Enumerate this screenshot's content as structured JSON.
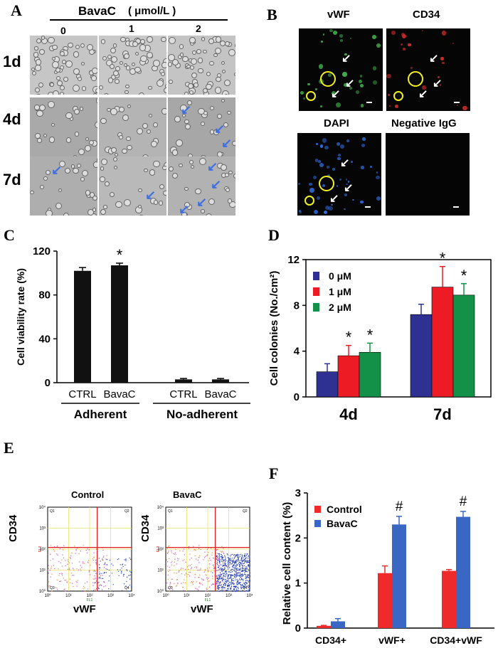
{
  "panels": {
    "A": "A",
    "B": "B",
    "C": "C",
    "D": "D",
    "E": "E",
    "F": "F"
  },
  "panel_a": {
    "treatment_label": "BavaC",
    "unit_label": "( μmol/L )",
    "columns": [
      "0",
      "1",
      "2"
    ],
    "rows": [
      "1d",
      "4d",
      "7d"
    ]
  },
  "panel_b": {
    "labels": [
      "vWF",
      "CD34",
      "DAPI",
      "Negative IgG"
    ]
  },
  "panel_e": {
    "titles": [
      "Control",
      "BavaC"
    ],
    "ylabel": "CD34",
    "xlabel": "vWF",
    "tick_labels": [
      "10⁰",
      "10¹",
      "10²",
      "10³",
      "10⁴"
    ],
    "quadrant_labels": [
      "Q1",
      "Q2",
      "Q3",
      "Q4"
    ],
    "axis_channel_labels": [
      "FL1",
      "FL3"
    ]
  },
  "colors": {
    "black_bar": "#111111",
    "blue": "#2e3192",
    "red": "#ed1c24",
    "green": "#139148",
    "f_blue": "#3a66c4",
    "f_red": "#ee2a2a",
    "arrow_blue": "#3f6fe0",
    "vwf_green": "#3fae49",
    "cd34_red": "#d42b2b",
    "dapi_blue": "#2f6de0",
    "circle_yellow": "#f2f21a"
  },
  "chart_data": [
    {
      "panel": "C",
      "type": "bar",
      "ylabel": "Cell viability rate (%)",
      "ylim": [
        0,
        120
      ],
      "yticks": [
        0,
        40,
        80,
        120
      ],
      "categories": [
        "CTRL",
        "BavaC",
        "CTRL",
        "BavaC"
      ],
      "groups": [
        "Adherent",
        "No-adherent"
      ],
      "values": [
        102,
        107,
        3,
        3
      ],
      "errors": [
        3,
        2,
        0.8,
        0.8
      ],
      "annotations": [
        "",
        "*",
        "",
        ""
      ]
    },
    {
      "panel": "D",
      "type": "bar",
      "ylabel": "Cell colonies (No./cm²)",
      "ylim": [
        0,
        12
      ],
      "yticks": [
        0,
        4,
        8,
        12
      ],
      "categories": [
        "4d",
        "7d"
      ],
      "legend_position": "top-left",
      "series": [
        {
          "name": "0 μM",
          "values": [
            2.2,
            7.2
          ],
          "errors": [
            0.7,
            0.9
          ],
          "annotations": [
            "",
            ""
          ]
        },
        {
          "name": "1 μM",
          "values": [
            3.6,
            9.6
          ],
          "errors": [
            0.9,
            1.8
          ],
          "annotations": [
            "*",
            "*"
          ]
        },
        {
          "name": "2 μM",
          "values": [
            3.9,
            8.9
          ],
          "errors": [
            0.8,
            1.0
          ],
          "annotations": [
            "*",
            "*"
          ]
        }
      ]
    },
    {
      "panel": "F",
      "type": "bar",
      "ylabel": "Relative cell content (%)",
      "ylim": [
        0,
        3
      ],
      "yticks": [
        0,
        1,
        2,
        3
      ],
      "categories": [
        "CD34+",
        "vWF+",
        "CD34+vWF"
      ],
      "legend_position": "top-left",
      "series": [
        {
          "name": "Control",
          "values": [
            0.05,
            1.22,
            1.27
          ],
          "errors": [
            0.01,
            0.16,
            0.03
          ],
          "annotations": [
            "",
            "",
            ""
          ]
        },
        {
          "name": "BavaC",
          "values": [
            0.15,
            2.3,
            2.47
          ],
          "errors": [
            0.06,
            0.18,
            0.12
          ],
          "annotations": [
            "",
            "#",
            "#"
          ]
        }
      ]
    }
  ]
}
